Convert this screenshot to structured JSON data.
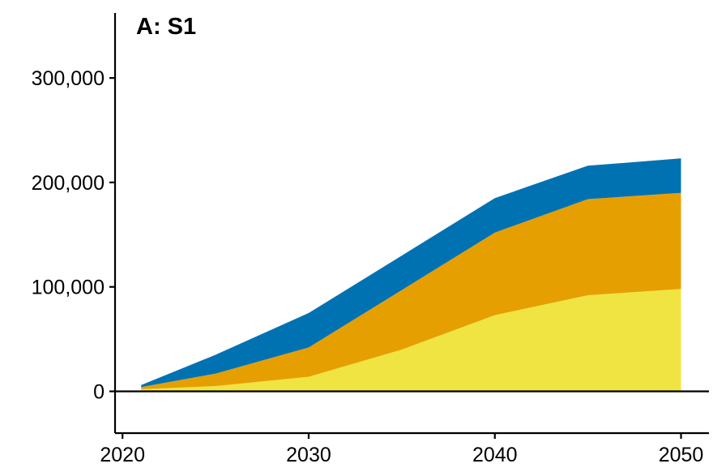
{
  "chart_data": {
    "type": "area",
    "stacked": true,
    "title": "A: S1",
    "xlabel": "",
    "ylabel": "",
    "x": [
      2021,
      2025,
      2030,
      2035,
      2040,
      2045,
      2050
    ],
    "series": [
      {
        "color": "#F0E442",
        "values": [
          2000,
          5000,
          14000,
          40000,
          73000,
          92000,
          98000
        ]
      },
      {
        "color": "#E69F00",
        "values": [
          2000,
          12000,
          28000,
          57000,
          79000,
          92000,
          92000
        ]
      },
      {
        "color": "#0072B2",
        "values": [
          2000,
          18000,
          33000,
          33000,
          33000,
          32000,
          33000
        ]
      }
    ],
    "xlim": [
      2019.6,
      2051.5
    ],
    "ylim": [
      -40000,
      370000
    ],
    "xticks": [
      2020,
      2030,
      2040,
      2050
    ],
    "xtick_labels": [
      "2020",
      "2030",
      "2040",
      "2050"
    ],
    "yticks": [
      0,
      100000,
      200000,
      300000
    ],
    "ytick_labels": [
      "0",
      "100,000",
      "200,000",
      "300,000"
    ],
    "zero_line": true,
    "grid": false,
    "legend": "none"
  }
}
